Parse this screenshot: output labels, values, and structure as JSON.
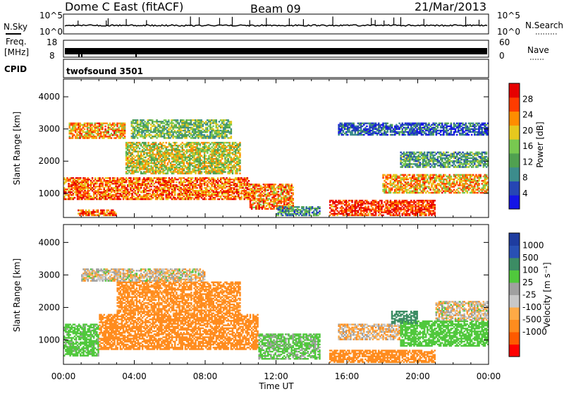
{
  "header": {
    "station": "Dome C East (fitACF)",
    "beam": "Beam 09",
    "date": "21/Mar/2013"
  },
  "top_panels": {
    "nsky_label": "N.Sky",
    "nsky_ticks": [
      "10^5",
      "10^0"
    ],
    "nsearch_label": "N.Search",
    "freq_label_line1": "Freq.",
    "freq_label_line2": "[MHz]",
    "freq_ticks": [
      "18",
      "8"
    ],
    "nave_label": "Nave",
    "nave_ticks": [
      "60",
      "0"
    ],
    "cpid_label": "CPID",
    "cpid_text": "twofsound 3501"
  },
  "colors": {
    "power_scale": [
      "#1414e6",
      "#2646b4",
      "#3c8c8c",
      "#50a050",
      "#78c850",
      "#e6c81e",
      "#ff8c00",
      "#ff3c00",
      "#e60000"
    ],
    "velocity_scale": [
      "#ff0000",
      "#ff5a00",
      "#ff8c1e",
      "#ffaa46",
      "#c8c8c8",
      "#a0a0a0",
      "#50c83c",
      "#3c8c64",
      "#2850b4",
      "#1e3ca0"
    ]
  },
  "chart_data": [
    {
      "type": "heatmap",
      "title": "Power",
      "xlabel": "Time UT",
      "ylabel": "Slant Range [km]",
      "x_ticks": [
        "00:00",
        "04:00",
        "08:00",
        "12:00",
        "16:00",
        "20:00",
        "00:00"
      ],
      "y_ticks": [
        1000,
        2000,
        3000,
        4000
      ],
      "ylim": [
        250,
        4550
      ],
      "colorbar_label": "Power [dB]",
      "colorbar_ticks": [
        4,
        8,
        12,
        16,
        20,
        24,
        28
      ],
      "colorbar_range": [
        0,
        32
      ],
      "regions": [
        {
          "t0": 0.0,
          "t1": 10.5,
          "r0": 800,
          "r1": 1500,
          "v": 25
        },
        {
          "t0": 0.3,
          "t1": 3.5,
          "r0": 2700,
          "r1": 3200,
          "v": 22
        },
        {
          "t0": 3.5,
          "t1": 10.0,
          "r0": 1600,
          "r1": 2600,
          "v": 18
        },
        {
          "t0": 3.8,
          "t1": 9.5,
          "r0": 2700,
          "r1": 3300,
          "v": 14
        },
        {
          "t0": 0.8,
          "t1": 3.0,
          "r0": 300,
          "r1": 500,
          "v": 26
        },
        {
          "t0": 10.5,
          "t1": 13.0,
          "r0": 500,
          "r1": 1300,
          "v": 24
        },
        {
          "t0": 15.0,
          "t1": 21.0,
          "r0": 300,
          "r1": 800,
          "v": 28
        },
        {
          "t0": 18.0,
          "t1": 24.0,
          "r0": 1000,
          "r1": 1600,
          "v": 22
        },
        {
          "t0": 19.0,
          "t1": 24.0,
          "r0": 1800,
          "r1": 2300,
          "v": 12
        },
        {
          "t0": 15.5,
          "t1": 24.0,
          "r0": 2800,
          "r1": 3200,
          "v": 6
        },
        {
          "t0": 12.0,
          "t1": 14.5,
          "r0": 300,
          "r1": 600,
          "v": 10
        }
      ]
    },
    {
      "type": "heatmap",
      "title": "Velocity",
      "xlabel": "Time UT",
      "ylabel": "Slant Range [km]",
      "x_ticks": [
        "00:00",
        "04:00",
        "08:00",
        "12:00",
        "16:00",
        "20:00",
        "00:00"
      ],
      "y_ticks": [
        1000,
        2000,
        3000,
        4000
      ],
      "ylim": [
        250,
        4550
      ],
      "colorbar_label": "Velocity [m s⁻¹]",
      "colorbar_ticks": [
        1000,
        500,
        100,
        25,
        -25,
        -100,
        -500,
        -1000
      ],
      "regions": [
        {
          "t0": 0.0,
          "t1": 2.0,
          "r0": 500,
          "r1": 1500,
          "v": 200
        },
        {
          "t0": 2.0,
          "t1": 11.0,
          "r0": 700,
          "r1": 1800,
          "v": -300
        },
        {
          "t0": 3.0,
          "t1": 10.0,
          "r0": 1800,
          "r1": 2800,
          "v": -200
        },
        {
          "t0": 1.0,
          "t1": 8.0,
          "r0": 2800,
          "r1": 3200,
          "v": 0
        },
        {
          "t0": 11.0,
          "t1": 14.5,
          "r0": 400,
          "r1": 1200,
          "v": 150
        },
        {
          "t0": 15.0,
          "t1": 21.0,
          "r0": 300,
          "r1": 700,
          "v": -350
        },
        {
          "t0": 15.5,
          "t1": 19.0,
          "r0": 1000,
          "r1": 1500,
          "v": -40
        },
        {
          "t0": 19.0,
          "t1": 24.0,
          "r0": 800,
          "r1": 1600,
          "v": 300
        },
        {
          "t0": 18.5,
          "t1": 20.0,
          "r0": 1500,
          "r1": 1900,
          "v": 700
        },
        {
          "t0": 21.0,
          "t1": 24.0,
          "r0": 1600,
          "r1": 2200,
          "v": 0
        }
      ]
    }
  ]
}
